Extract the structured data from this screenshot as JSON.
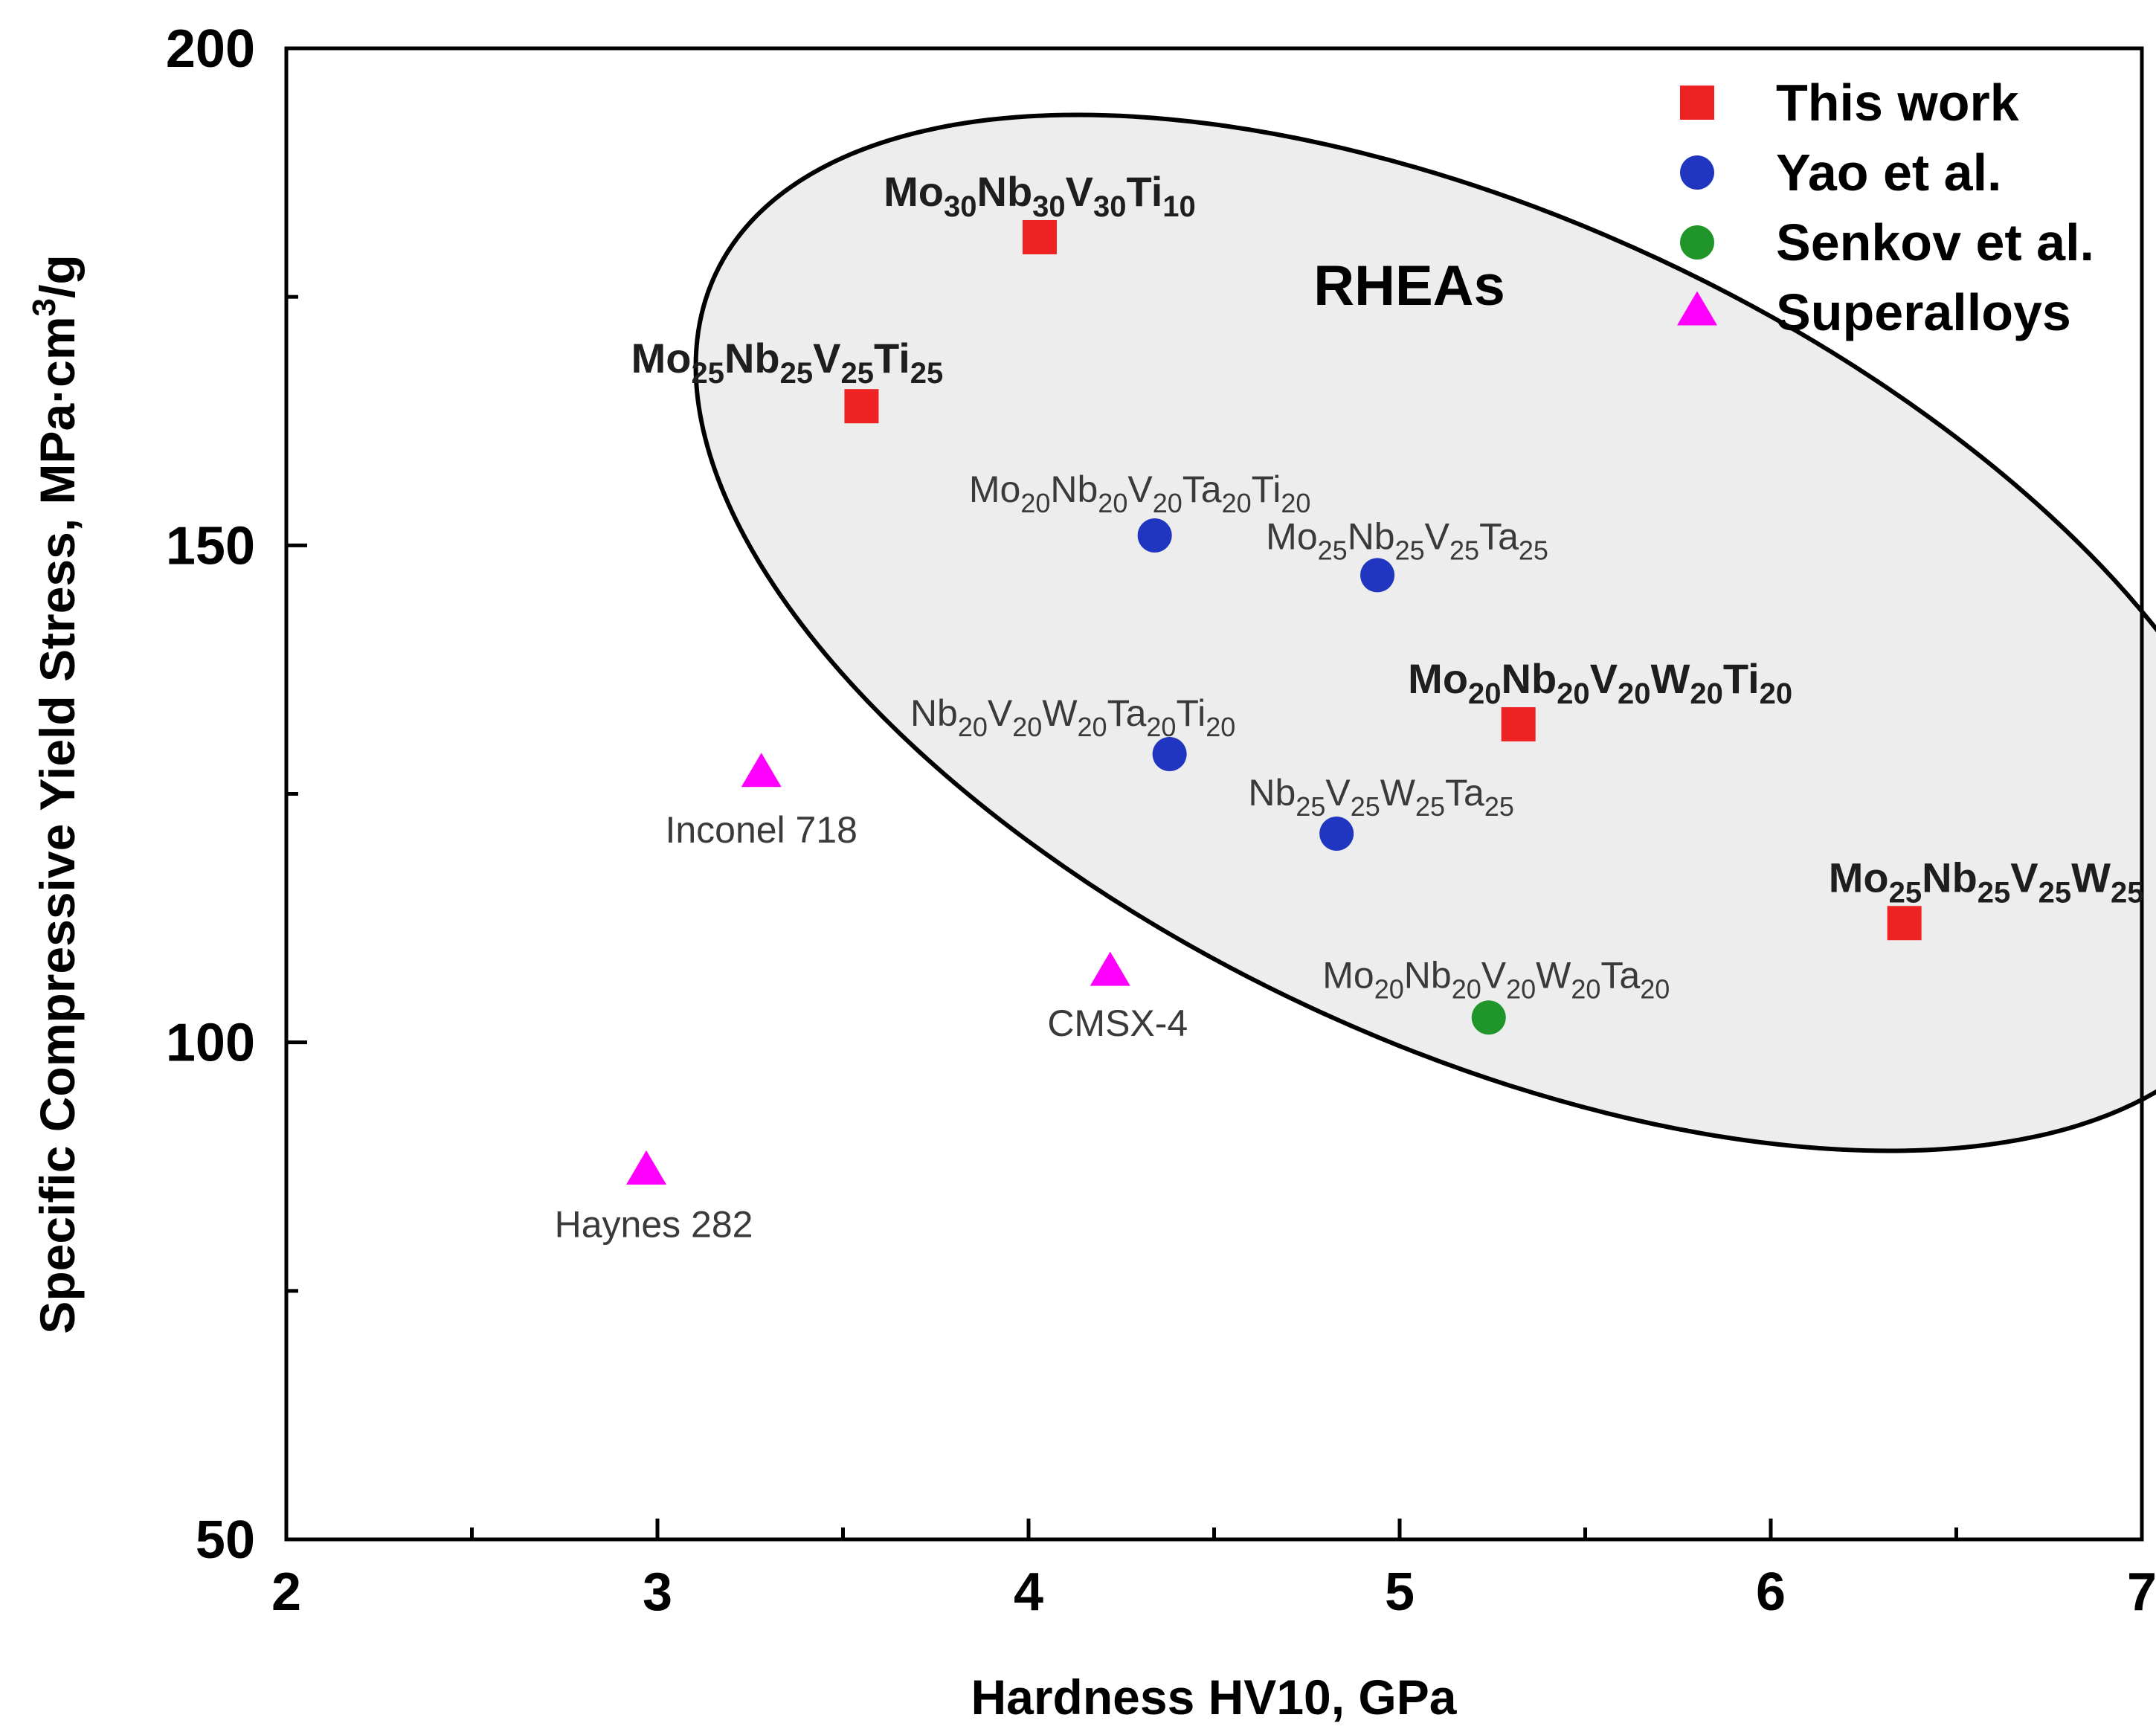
{
  "chart_data": {
    "type": "scatter",
    "title": "",
    "xlabel": "Hardness HV10, GPa",
    "ylabel": "Specific Compressive Yield Stress, MPa·cm³/g",
    "ylabel_base": "Specific Compressive Yield Stress, MPa·cm",
    "ylabel_sup": "3",
    "ylabel_end": "/g",
    "xlim": [
      2,
      7
    ],
    "ylim": [
      50,
      200
    ],
    "x_ticks": [
      "2",
      "3",
      "4",
      "5",
      "6",
      "7"
    ],
    "y_ticks": [
      "50",
      "100",
      "150",
      "200"
    ],
    "annotation": "RHEAs",
    "series": [
      {
        "name": "This work",
        "marker": "square",
        "color": "#ee2222",
        "label_style": "bold",
        "points": [
          {
            "x": 4.03,
            "y": 181,
            "label": "Mo30Nb30V30Ti10"
          },
          {
            "x": 3.55,
            "y": 164,
            "label": "Mo25Nb25V25Ti25"
          },
          {
            "x": 5.32,
            "y": 132,
            "label": "Mo20Nb20V20W20Ti20"
          },
          {
            "x": 6.36,
            "y": 112,
            "label": "Mo25Nb25V25W25"
          }
        ]
      },
      {
        "name": "Yao et al.",
        "marker": "circle",
        "color": "#2035c0",
        "label_style": "normal",
        "points": [
          {
            "x": 4.34,
            "y": 151,
            "label": "Mo20Nb20V20Ta20Ti20"
          },
          {
            "x": 4.94,
            "y": 147,
            "label": "Mo25Nb25V25Ta25"
          },
          {
            "x": 4.38,
            "y": 129,
            "label": "Nb20V20W20Ta20Ti20"
          },
          {
            "x": 4.83,
            "y": 121,
            "label": "Nb25V25W25Ta25"
          }
        ]
      },
      {
        "name": "Senkov et al.",
        "marker": "circle",
        "color": "#20962a",
        "label_style": "normal",
        "points": [
          {
            "x": 5.24,
            "y": 102.5,
            "label": "Mo20Nb20V20W20Ta20"
          }
        ]
      },
      {
        "name": "Superalloys",
        "marker": "triangle",
        "color": "#ff00ff",
        "label_style": "normal",
        "points": [
          {
            "x": 3.28,
            "y": 127,
            "label": "Inconel 718"
          },
          {
            "x": 4.22,
            "y": 107,
            "label": "CMSX-4"
          },
          {
            "x": 2.97,
            "y": 87,
            "label": "Haynes 282"
          }
        ]
      }
    ]
  }
}
